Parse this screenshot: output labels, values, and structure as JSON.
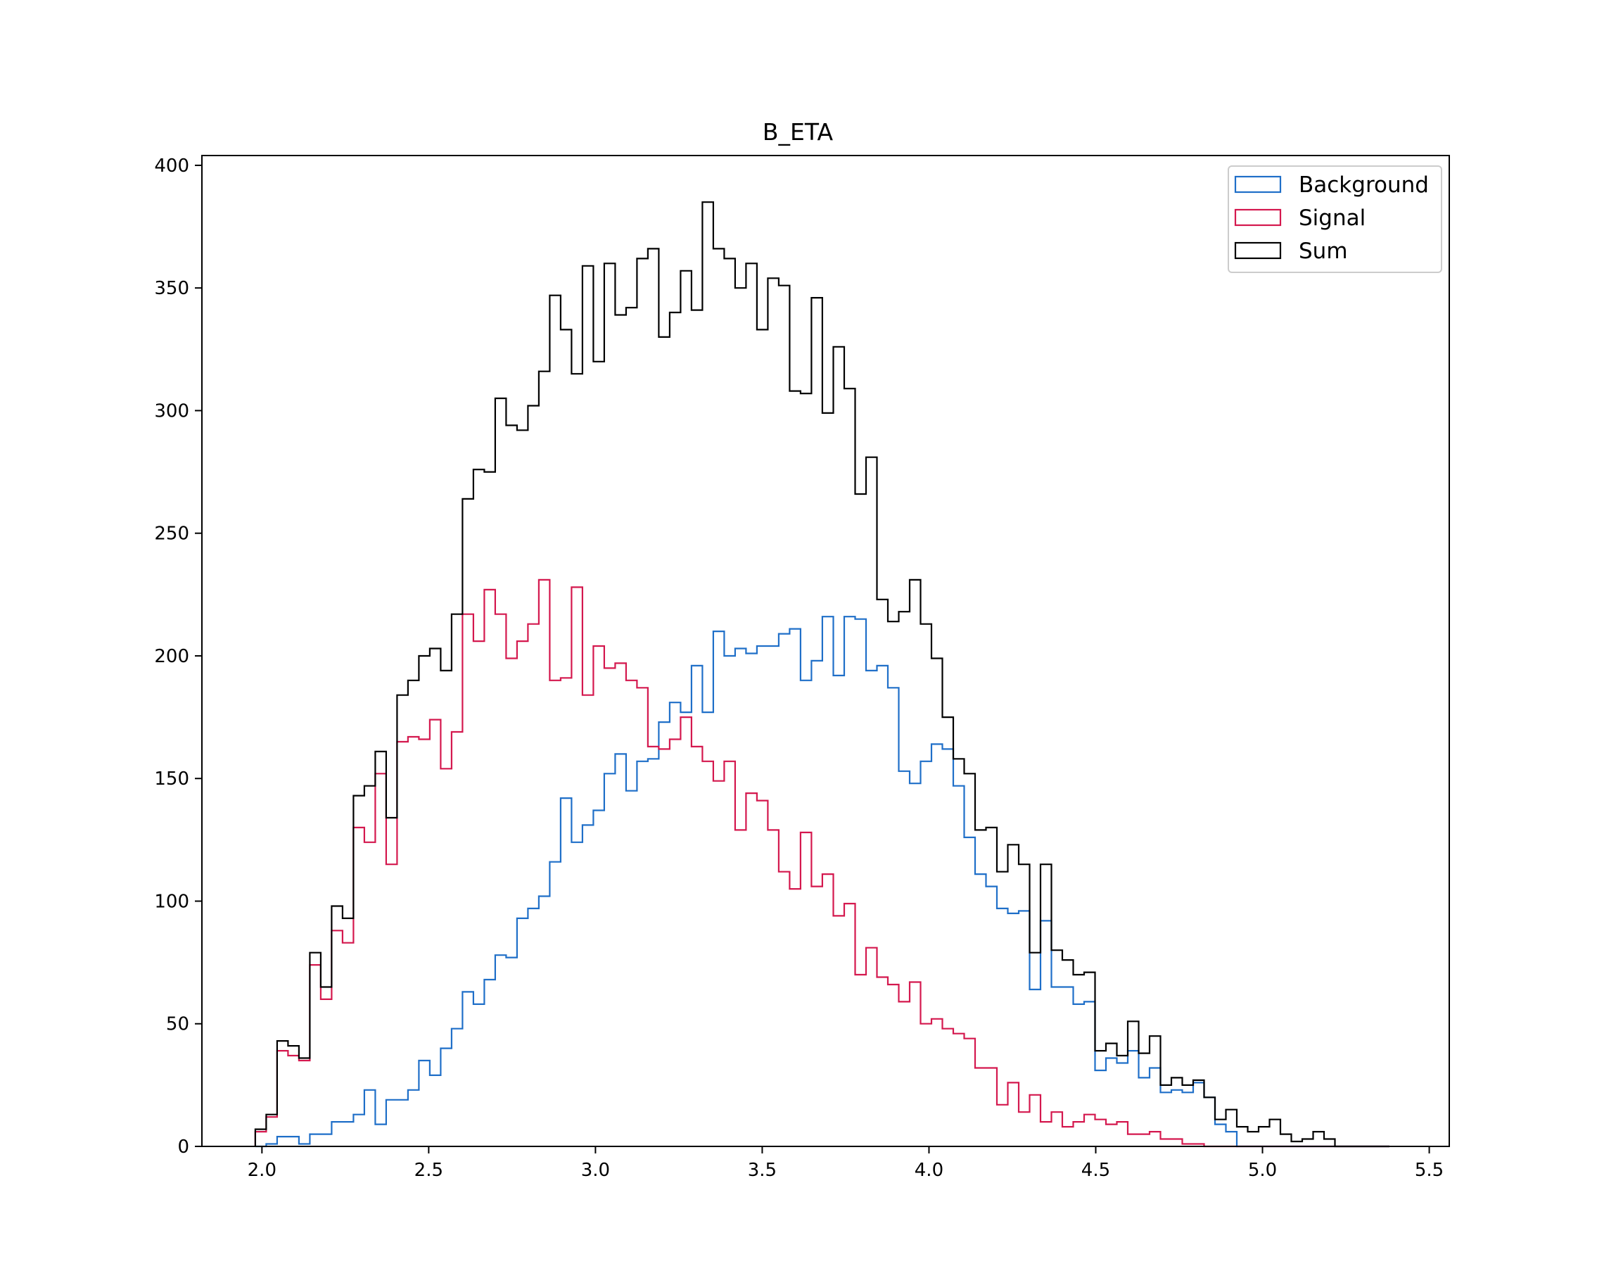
{
  "chart_data": {
    "type": "histogram",
    "title": "B_ETA",
    "xlabel": "",
    "ylabel": "",
    "xlim": [
      1.82,
      5.56
    ],
    "ylim": [
      0,
      404
    ],
    "xticks": [
      2.0,
      2.5,
      3.0,
      3.5,
      4.0,
      4.5,
      5.0,
      5.5
    ],
    "xtick_labels": [
      "2.0",
      "2.5",
      "3.0",
      "3.5",
      "4.0",
      "4.5",
      "5.0",
      "5.5"
    ],
    "yticks": [
      0,
      50,
      100,
      150,
      200,
      250,
      300,
      350,
      400
    ],
    "ytick_labels": [
      "0",
      "50",
      "100",
      "150",
      "200",
      "250",
      "300",
      "350",
      "400"
    ],
    "grid": false,
    "legend": "top-right",
    "bin_start": 1.98,
    "bin_width": 0.0327,
    "series": [
      {
        "name": "Background",
        "color": "#1f6fc8",
        "values": [
          0,
          1,
          4,
          4,
          1,
          5,
          5,
          10,
          10,
          13,
          23,
          9,
          19,
          19,
          23,
          35,
          29,
          40,
          48,
          63,
          58,
          68,
          78,
          77,
          93,
          97,
          102,
          116,
          142,
          124,
          131,
          137,
          152,
          160,
          145,
          157,
          158,
          173,
          181,
          177,
          196,
          177,
          210,
          200,
          203,
          201,
          204,
          204,
          209,
          211,
          190,
          198,
          216,
          192,
          216,
          215,
          194,
          196,
          187,
          153,
          148,
          157,
          164,
          162,
          147,
          126,
          111,
          106,
          97,
          95,
          96,
          64,
          92,
          65,
          65,
          58,
          59,
          31,
          36,
          34,
          39,
          28,
          32,
          22,
          23,
          22,
          26,
          20,
          9,
          6,
          0,
          0,
          0,
          0,
          0,
          0,
          0,
          0,
          0,
          0,
          0,
          0,
          0,
          0
        ]
      },
      {
        "name": "Signal",
        "color": "#d4184e",
        "values": [
          6,
          12,
          39,
          37,
          35,
          74,
          60,
          88,
          83,
          130,
          124,
          152,
          115,
          165,
          167,
          166,
          174,
          154,
          169,
          217,
          206,
          227,
          217,
          199,
          206,
          213,
          231,
          190,
          191,
          228,
          184,
          204,
          195,
          197,
          190,
          187,
          163,
          162,
          166,
          175,
          163,
          157,
          149,
          157,
          129,
          144,
          141,
          129,
          112,
          105,
          128,
          106,
          111,
          94,
          99,
          70,
          81,
          69,
          66,
          59,
          67,
          50,
          52,
          48,
          46,
          44,
          32,
          32,
          17,
          26,
          14,
          21,
          10,
          14,
          8,
          10,
          13,
          11,
          9,
          10,
          5,
          5,
          6,
          3,
          3,
          1,
          1,
          0,
          0,
          0,
          0,
          0,
          0,
          0,
          0,
          0,
          0,
          0,
          0,
          0,
          0,
          0,
          0,
          0
        ]
      },
      {
        "name": "Sum",
        "color": "#000000",
        "values": [
          7,
          13,
          43,
          41,
          36,
          79,
          65,
          98,
          93,
          143,
          147,
          161,
          134,
          184,
          190,
          200,
          203,
          194,
          217,
          264,
          276,
          275,
          305,
          294,
          292,
          302,
          316,
          347,
          333,
          315,
          359,
          320,
          360,
          339,
          342,
          362,
          366,
          330,
          340,
          357,
          341,
          385,
          366,
          362,
          350,
          360,
          333,
          354,
          351,
          308,
          307,
          346,
          299,
          326,
          309,
          266,
          281,
          223,
          214,
          218,
          231,
          213,
          199,
          175,
          158,
          152,
          129,
          130,
          112,
          123,
          115,
          79,
          115,
          80,
          76,
          70,
          71,
          39,
          42,
          37,
          51,
          38,
          45,
          25,
          28,
          25,
          27,
          20,
          11,
          15,
          8,
          6,
          8,
          11,
          5,
          2,
          3,
          6,
          3,
          0,
          0,
          0,
          0,
          0
        ]
      }
    ]
  }
}
